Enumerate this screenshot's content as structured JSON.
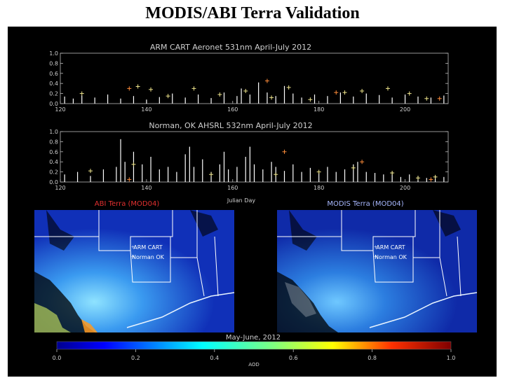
{
  "page": {
    "title": "MODIS/ABI Terra Validation"
  },
  "colors": {
    "panel_bg": "#000000",
    "trace": "#ffffff",
    "plus_marker": "#f0e68c",
    "orange_marker": "#ff8c3a",
    "map_border": "#ffffff"
  },
  "chart_data": [
    {
      "type": "scatter",
      "title": "ARM CART Aeronet 531nm April-July 2012",
      "xlim": [
        120,
        210
      ],
      "ylim": [
        0.0,
        1.0
      ],
      "x_ticks": [
        "120",
        "140",
        "160",
        "180",
        "200"
      ],
      "y_ticks": [
        "1.0",
        "0.8",
        "0.6",
        "0.4",
        "0.2",
        "0.0"
      ],
      "series": [
        {
          "name": "",
          "style": "trace",
          "values": [
            [
              121,
              0.14
            ],
            [
              123,
              0.1
            ],
            [
              125,
              0.16
            ],
            [
              128,
              0.12
            ],
            [
              131,
              0.18
            ],
            [
              134,
              0.1
            ],
            [
              137,
              0.15
            ],
            [
              140,
              0.08
            ],
            [
              143,
              0.13
            ],
            [
              146,
              0.2
            ],
            [
              149,
              0.12
            ],
            [
              152,
              0.18
            ],
            [
              155,
              0.11
            ],
            [
              158,
              0.22
            ],
            [
              161,
              0.15
            ],
            [
              162,
              0.3
            ],
            [
              164,
              0.18
            ],
            [
              166,
              0.42
            ],
            [
              168,
              0.22
            ],
            [
              170,
              0.15
            ],
            [
              172,
              0.35
            ],
            [
              174,
              0.2
            ],
            [
              176,
              0.12
            ],
            [
              179,
              0.18
            ],
            [
              182,
              0.15
            ],
            [
              185,
              0.22
            ],
            [
              188,
              0.14
            ],
            [
              191,
              0.2
            ],
            [
              194,
              0.17
            ],
            [
              197,
              0.12
            ],
            [
              200,
              0.18
            ],
            [
              203,
              0.14
            ],
            [
              206,
              0.12
            ],
            [
              209,
              0.16
            ]
          ]
        },
        {
          "name": "",
          "style": "plus",
          "values": [
            [
              125,
              0.2
            ],
            [
              138,
              0.34
            ],
            [
              141,
              0.28
            ],
            [
              145,
              0.15
            ],
            [
              151,
              0.3
            ],
            [
              157,
              0.18
            ],
            [
              163,
              0.25
            ],
            [
              169,
              0.12
            ],
            [
              173,
              0.32
            ],
            [
              178,
              0.08
            ],
            [
              186,
              0.22
            ],
            [
              190,
              0.25
            ],
            [
              196,
              0.3
            ],
            [
              201,
              0.2
            ],
            [
              205,
              0.1
            ]
          ]
        },
        {
          "name": "",
          "style": "orange",
          "values": [
            [
              136,
              0.3
            ],
            [
              168,
              0.45
            ],
            [
              184,
              0.22
            ],
            [
              208,
              0.1
            ]
          ]
        }
      ]
    },
    {
      "type": "scatter",
      "title": "Norman, OK AHSRL 532nm April-July 2012",
      "xlabel": "Julian Day",
      "xlim": [
        120,
        210
      ],
      "ylim": [
        0.0,
        1.0
      ],
      "x_ticks": [
        "120",
        "140",
        "160",
        "180",
        "200"
      ],
      "y_ticks": [
        "1.0",
        "0.8",
        "0.6",
        "0.4",
        "0.2",
        "0.0"
      ],
      "series": [
        {
          "name": "",
          "style": "trace",
          "values": [
            [
              121,
              0.15
            ],
            [
              124,
              0.2
            ],
            [
              127,
              0.12
            ],
            [
              130,
              0.25
            ],
            [
              133,
              0.3
            ],
            [
              134,
              0.85
            ],
            [
              135,
              0.4
            ],
            [
              137,
              0.6
            ],
            [
              139,
              0.35
            ],
            [
              141,
              0.5
            ],
            [
              143,
              0.25
            ],
            [
              145,
              0.3
            ],
            [
              147,
              0.2
            ],
            [
              149,
              0.55
            ],
            [
              150,
              0.7
            ],
            [
              151,
              0.3
            ],
            [
              153,
              0.45
            ],
            [
              155,
              0.2
            ],
            [
              157,
              0.35
            ],
            [
              158,
              0.6
            ],
            [
              159,
              0.25
            ],
            [
              161,
              0.3
            ],
            [
              163,
              0.5
            ],
            [
              164,
              0.7
            ],
            [
              165,
              0.35
            ],
            [
              167,
              0.25
            ],
            [
              169,
              0.4
            ],
            [
              170,
              0.3
            ],
            [
              172,
              0.22
            ],
            [
              174,
              0.35
            ],
            [
              176,
              0.2
            ],
            [
              178,
              0.28
            ],
            [
              180,
              0.18
            ],
            [
              182,
              0.3
            ],
            [
              184,
              0.2
            ],
            [
              186,
              0.25
            ],
            [
              188,
              0.35
            ],
            [
              189,
              0.4
            ],
            [
              191,
              0.2
            ],
            [
              193,
              0.18
            ],
            [
              195,
              0.15
            ],
            [
              197,
              0.2
            ],
            [
              199,
              0.1
            ],
            [
              201,
              0.15
            ],
            [
              203,
              0.12
            ],
            [
              205,
              0.08
            ],
            [
              207,
              0.12
            ],
            [
              209,
              0.1
            ]
          ]
        },
        {
          "name": "",
          "style": "plus",
          "values": [
            [
              127,
              0.22
            ],
            [
              137,
              0.35
            ],
            [
              155,
              0.15
            ],
            [
              170,
              0.15
            ],
            [
              180,
              0.2
            ],
            [
              188,
              0.28
            ],
            [
              197,
              0.18
            ],
            [
              203,
              0.08
            ],
            [
              207,
              0.1
            ]
          ]
        },
        {
          "name": "",
          "style": "orange",
          "values": [
            [
              136,
              0.05
            ],
            [
              172,
              0.6
            ],
            [
              190,
              0.4
            ],
            [
              206,
              0.05
            ]
          ]
        }
      ]
    },
    {
      "type": "heatmap",
      "title": "ABI Terra (MOD04)",
      "colorbar_label": "AOD",
      "clim": [
        0.0,
        1.0
      ],
      "colorbar_ticks": [
        "0.0",
        "0.2",
        "0.4",
        "0.6",
        "0.8",
        "1.0"
      ],
      "annotations": [
        "ARM CART",
        "Norman OK"
      ]
    },
    {
      "type": "heatmap",
      "title": "MODIS Terra (MOD04)",
      "caption": "May-June, 2012",
      "annotations": [
        "ARM CART",
        "Norman OK"
      ]
    }
  ]
}
